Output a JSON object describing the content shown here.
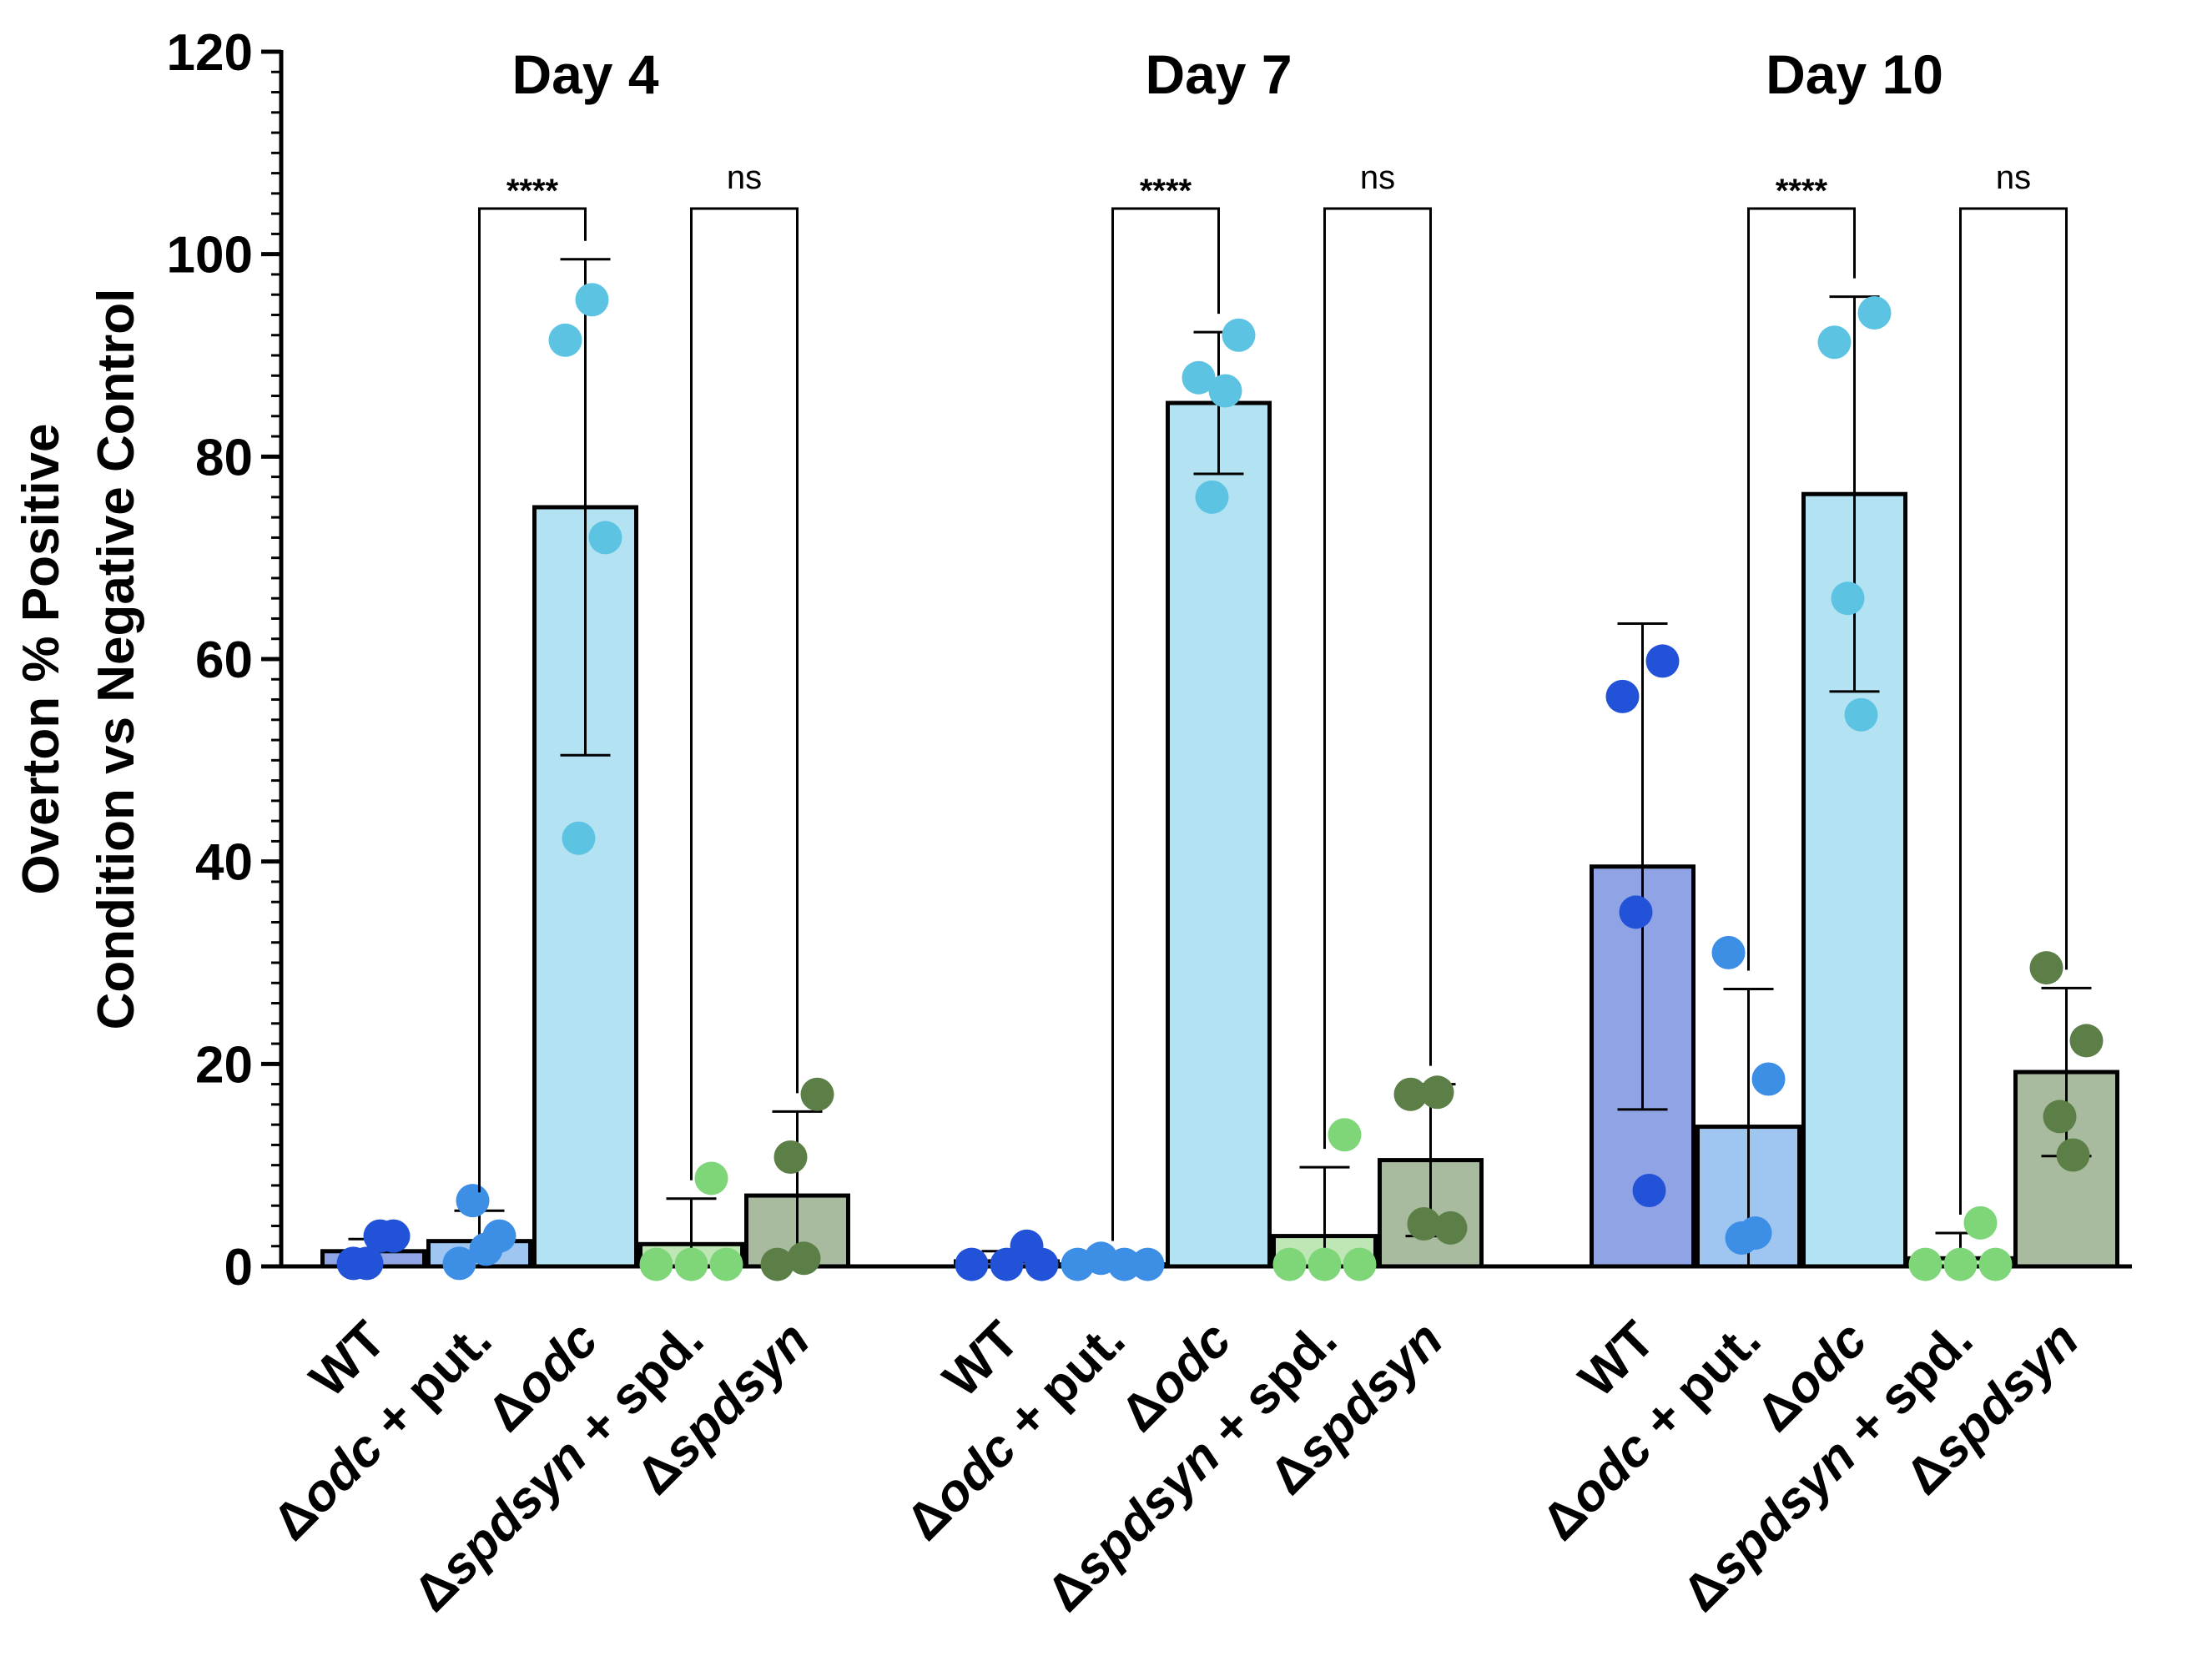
{
  "chart_data": {
    "type": "bar",
    "ylabel_lines": [
      "Overton % Positive",
      "Condition vs Negative Control"
    ],
    "ylim": [
      0,
      120
    ],
    "yticks": [
      0,
      20,
      40,
      60,
      80,
      100,
      120
    ],
    "categories": [
      {
        "prefix": "",
        "italic": "",
        "suffix": "WT"
      },
      {
        "prefix": "Δ",
        "italic": "odc",
        "suffix": " + put."
      },
      {
        "prefix": "Δ",
        "italic": "odc",
        "suffix": ""
      },
      {
        "prefix": "Δ",
        "italic": "spdsyn",
        "suffix": " + spd."
      },
      {
        "prefix": "Δ",
        "italic": "spdsyn",
        "suffix": ""
      }
    ],
    "colors": {
      "bars": [
        "#8fa3e5",
        "#9fc6f0",
        "#b3e3f2",
        "#bfe6b5",
        "#a9bb9f"
      ],
      "points": [
        "#2252d8",
        "#3d8fe6",
        "#5cc3e3",
        "#7ed679",
        "#5c7f48"
      ]
    },
    "groups": [
      {
        "title": "Day 4",
        "means": [
          1.5,
          2.5,
          75,
          2.2,
          7
        ],
        "errors": [
          1.2,
          3.0,
          24.5,
          4.5,
          8.3
        ],
        "points": [
          [
            0.3,
            3.0,
            0.3,
            3.0
          ],
          [
            0.3,
            3.0,
            6.5,
            1.7
          ],
          [
            91.5,
            72.0,
            42.3,
            95.5
          ],
          [
            0.2,
            8.7,
            0.2,
            0.2
          ],
          [
            0.2,
            17.0,
            10.8,
            0.8
          ]
        ],
        "comparisons": [
          {
            "from": 1,
            "to": 2,
            "label": "****"
          },
          {
            "from": 3,
            "to": 4,
            "label": "ns"
          }
        ]
      },
      {
        "title": "Day 7",
        "means": [
          0.5,
          0.2,
          85.3,
          3.0,
          10.5
        ],
        "errors": [
          1.0,
          0.5,
          7.0,
          6.8,
          7.5
        ],
        "points": [
          [
            0.2,
            2.0,
            0.2,
            0.2
          ],
          [
            0.2,
            0.8,
            0.2,
            0.2
          ],
          [
            87.8,
            92.0,
            76.0,
            86.5
          ],
          [
            0.2,
            13.0,
            0.2,
            0.2
          ],
          [
            17.0,
            3.8,
            4.2,
            17.2
          ]
        ],
        "comparisons": [
          {
            "from": 1,
            "to": 2,
            "label": "****"
          },
          {
            "from": 3,
            "to": 4,
            "label": "ns"
          }
        ]
      },
      {
        "title": "Day 10",
        "means": [
          39.5,
          13.8,
          76.3,
          0.8,
          19.2
        ],
        "errors": [
          24.0,
          13.6,
          19.5,
          2.5,
          8.3
        ],
        "points": [
          [
            56.3,
            59.8,
            35.0,
            7.5
          ],
          [
            31.0,
            18.5,
            2.8,
            3.3
          ],
          [
            91.3,
            94.2,
            66.0,
            54.5
          ],
          [
            0.2,
            4.3,
            0.2,
            0.2
          ],
          [
            29.5,
            22.3,
            14.8,
            11.0
          ]
        ],
        "comparisons": [
          {
            "from": 1,
            "to": 2,
            "label": "****"
          },
          {
            "from": 3,
            "to": 4,
            "label": "ns"
          }
        ]
      }
    ]
  }
}
